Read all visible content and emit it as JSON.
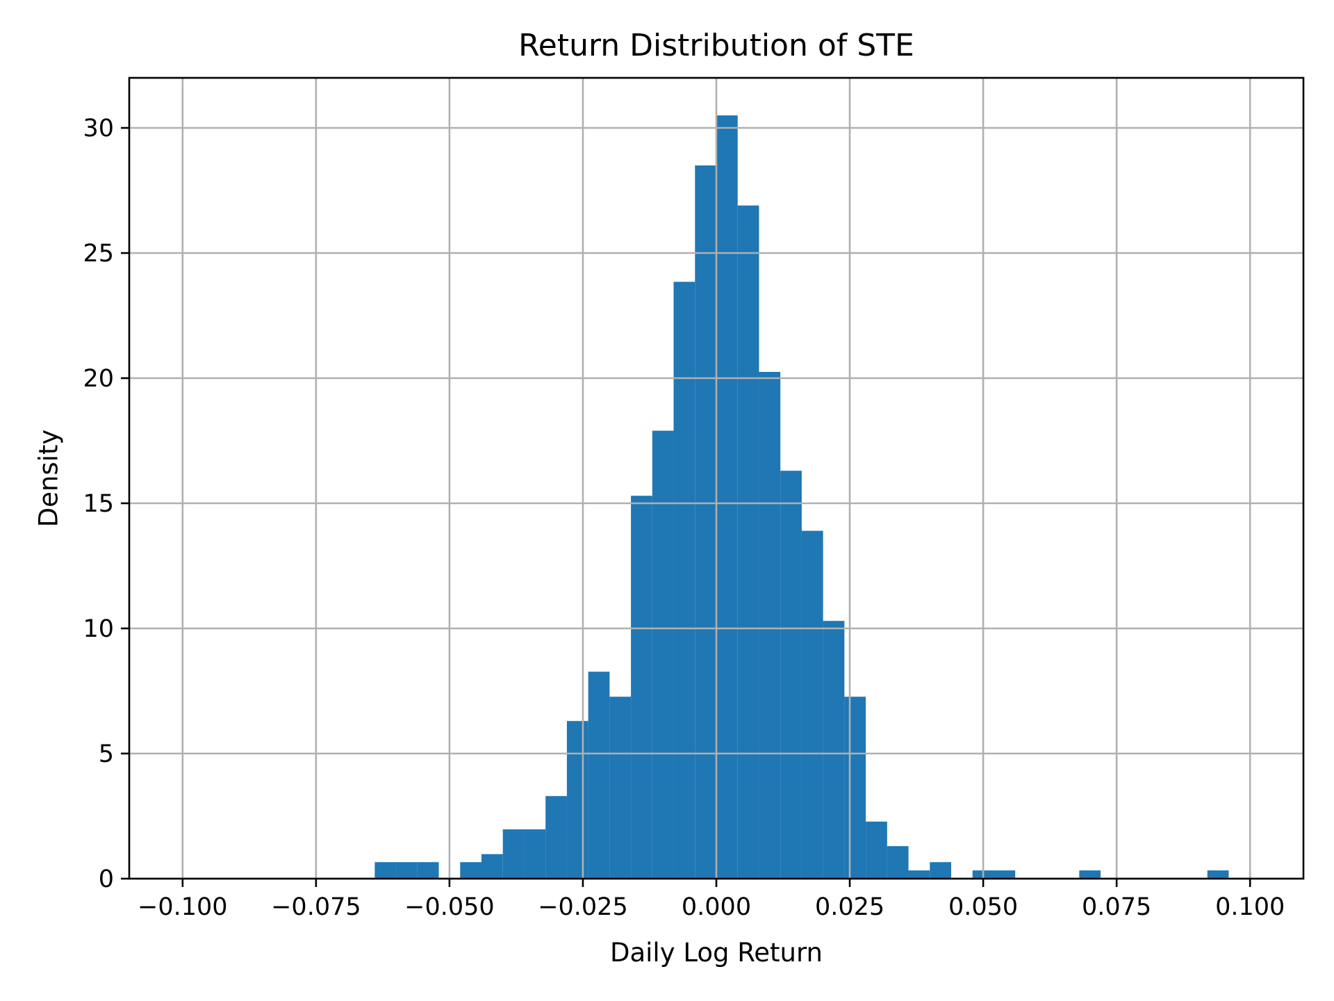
{
  "chart_data": {
    "type": "bar",
    "subtype": "histogram",
    "title": "Return Distribution of STE",
    "xlabel": "Daily Log Return",
    "ylabel": "Density",
    "xlim": [
      -0.11,
      0.11
    ],
    "ylim": [
      0,
      32
    ],
    "grid": true,
    "legend": null,
    "bar_color": "#1f77b4",
    "grid_color": "#b0b0b0",
    "x_ticks": [
      -0.1,
      -0.075,
      -0.05,
      -0.025,
      0.0,
      0.025,
      0.05,
      0.075,
      0.1
    ],
    "x_tick_labels": [
      "−0.100",
      "−0.075",
      "−0.050",
      "−0.025",
      "0.000",
      "0.025",
      "0.050",
      "0.075",
      "0.100"
    ],
    "y_ticks": [
      0,
      5,
      10,
      15,
      20,
      25,
      30
    ],
    "y_tick_labels": [
      "0",
      "5",
      "10",
      "15",
      "20",
      "25",
      "30"
    ],
    "bin_start": -0.064,
    "bin_width": 0.004,
    "bins": [
      {
        "left": -0.064,
        "right": -0.06,
        "density": 0.66
      },
      {
        "left": -0.06,
        "right": -0.056,
        "density": 0.66
      },
      {
        "left": -0.056,
        "right": -0.052,
        "density": 0.66
      },
      {
        "left": -0.052,
        "right": -0.048,
        "density": 0.0
      },
      {
        "left": -0.048,
        "right": -0.044,
        "density": 0.66
      },
      {
        "left": -0.044,
        "right": -0.04,
        "density": 0.98
      },
      {
        "left": -0.04,
        "right": -0.036,
        "density": 1.97
      },
      {
        "left": -0.036,
        "right": -0.032,
        "density": 1.97
      },
      {
        "left": -0.032,
        "right": -0.028,
        "density": 3.3
      },
      {
        "left": -0.028,
        "right": -0.024,
        "density": 6.3
      },
      {
        "left": -0.024,
        "right": -0.02,
        "density": 8.27
      },
      {
        "left": -0.02,
        "right": -0.016,
        "density": 7.27
      },
      {
        "left": -0.016,
        "right": -0.012,
        "density": 15.3
      },
      {
        "left": -0.012,
        "right": -0.008,
        "density": 17.9
      },
      {
        "left": -0.008,
        "right": -0.004,
        "density": 23.85
      },
      {
        "left": -0.004,
        "right": 0.0,
        "density": 28.5
      },
      {
        "left": 0.0,
        "right": 0.004,
        "density": 30.5
      },
      {
        "left": 0.004,
        "right": 0.008,
        "density": 26.9
      },
      {
        "left": 0.008,
        "right": 0.012,
        "density": 20.25
      },
      {
        "left": 0.012,
        "right": 0.016,
        "density": 16.3
      },
      {
        "left": 0.016,
        "right": 0.02,
        "density": 13.9
      },
      {
        "left": 0.02,
        "right": 0.024,
        "density": 10.3
      },
      {
        "left": 0.024,
        "right": 0.028,
        "density": 7.27
      },
      {
        "left": 0.028,
        "right": 0.032,
        "density": 2.28
      },
      {
        "left": 0.032,
        "right": 0.036,
        "density": 1.3
      },
      {
        "left": 0.036,
        "right": 0.04,
        "density": 0.33
      },
      {
        "left": 0.04,
        "right": 0.044,
        "density": 0.66
      },
      {
        "left": 0.044,
        "right": 0.048,
        "density": 0.0
      },
      {
        "left": 0.048,
        "right": 0.052,
        "density": 0.33
      },
      {
        "left": 0.052,
        "right": 0.056,
        "density": 0.33
      },
      {
        "left": 0.056,
        "right": 0.06,
        "density": 0.0
      },
      {
        "left": 0.06,
        "right": 0.064,
        "density": 0.0
      },
      {
        "left": 0.064,
        "right": 0.068,
        "density": 0.0
      },
      {
        "left": 0.068,
        "right": 0.072,
        "density": 0.33
      },
      {
        "left": 0.072,
        "right": 0.076,
        "density": 0.0
      },
      {
        "left": 0.076,
        "right": 0.08,
        "density": 0.0
      },
      {
        "left": 0.08,
        "right": 0.084,
        "density": 0.0
      },
      {
        "left": 0.084,
        "right": 0.088,
        "density": 0.0
      },
      {
        "left": 0.088,
        "right": 0.092,
        "density": 0.0
      },
      {
        "left": 0.092,
        "right": 0.096,
        "density": 0.33
      }
    ],
    "categories": [
      -0.062,
      -0.058,
      -0.054,
      -0.05,
      -0.046,
      -0.042,
      -0.038,
      -0.034,
      -0.03,
      -0.026,
      -0.022,
      -0.018,
      -0.014,
      -0.01,
      -0.006,
      -0.002,
      0.002,
      0.006,
      0.01,
      0.014,
      0.018,
      0.022,
      0.026,
      0.03,
      0.034,
      0.038,
      0.042,
      0.046,
      0.05,
      0.054,
      0.058,
      0.062,
      0.066,
      0.07,
      0.074,
      0.078,
      0.082,
      0.086,
      0.09,
      0.094
    ],
    "values": [
      0.66,
      0.66,
      0.66,
      0.0,
      0.66,
      0.98,
      1.97,
      1.97,
      3.3,
      6.3,
      8.27,
      7.27,
      15.3,
      17.9,
      23.85,
      28.5,
      30.5,
      26.9,
      20.25,
      16.3,
      13.9,
      10.3,
      7.27,
      2.28,
      1.3,
      0.33,
      0.66,
      0.0,
      0.33,
      0.33,
      0.0,
      0.0,
      0.0,
      0.33,
      0.0,
      0.0,
      0.0,
      0.0,
      0.0,
      0.33
    ]
  }
}
